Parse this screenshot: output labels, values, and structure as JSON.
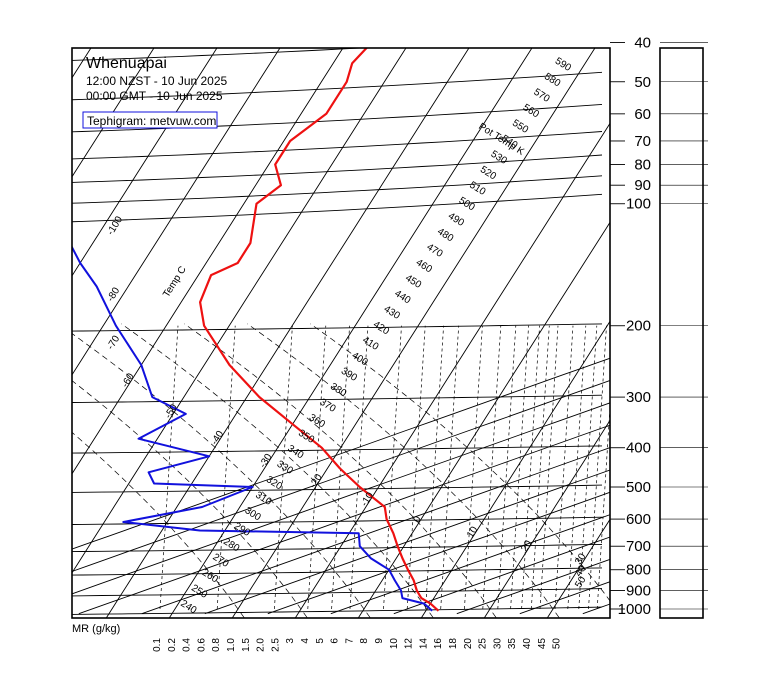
{
  "header": {
    "station": "Whenuapai",
    "local_time": "12:00 NZST - 10 Jun 2025",
    "gmt_time": "00:00 GMT - 10 Jun 2025",
    "source": "Tephigram: metvuw.com"
  },
  "chart_data": {
    "type": "line",
    "title": "Whenuapai",
    "pressure_levels": [
      1000,
      900,
      800,
      700,
      600,
      500,
      400,
      300,
      200,
      100,
      90,
      80,
      70,
      60,
      50,
      40
    ],
    "isotherm_labels": [
      "-100",
      "-80",
      "-70",
      "-60",
      "-50",
      "-40",
      "-30",
      "-20",
      "-10",
      "0",
      "10",
      "20",
      "30",
      "40",
      "50"
    ],
    "theta_labels": [
      "240",
      "250",
      "260",
      "270",
      "280",
      "290",
      "300",
      "310",
      "320",
      "330",
      "340",
      "350",
      "360",
      "370",
      "380",
      "390",
      "400",
      "410",
      "420",
      "430",
      "440",
      "450",
      "460",
      "470",
      "480",
      "490",
      "500",
      "510",
      "520",
      "530",
      "540",
      "550",
      "560",
      "570",
      "580",
      "590"
    ],
    "axis_labels": {
      "temp": "Temp C",
      "theta": "Pot Temp K",
      "mr": "MR (g/kg)"
    },
    "mixing_ratio_labels": [
      "0.1",
      "0.2",
      "0.4",
      "0.6",
      "0.8",
      "1.0",
      "1.5",
      "2.0",
      "2.5",
      "3",
      "4",
      "5",
      "6",
      "7",
      "8",
      "9",
      "10",
      "12",
      "14",
      "16",
      "18",
      "20",
      "25",
      "30",
      "35",
      "40",
      "45",
      "50"
    ],
    "series": [
      {
        "name": "Temperature",
        "color": "#ee1111",
        "points": [
          {
            "p": 1010,
            "t": 12
          },
          {
            "p": 970,
            "t": 10
          },
          {
            "p": 940,
            "t": 8
          },
          {
            "p": 900,
            "t": 6.5
          },
          {
            "p": 850,
            "t": 5
          },
          {
            "p": 800,
            "t": 3
          },
          {
            "p": 750,
            "t": 1
          },
          {
            "p": 700,
            "t": -1
          },
          {
            "p": 650,
            "t": -3
          },
          {
            "p": 600,
            "t": -5.5
          },
          {
            "p": 560,
            "t": -7
          },
          {
            "p": 500,
            "t": -13
          },
          {
            "p": 450,
            "t": -18
          },
          {
            "p": 400,
            "t": -23
          },
          {
            "p": 350,
            "t": -30
          },
          {
            "p": 300,
            "t": -38
          },
          {
            "p": 250,
            "t": -46
          },
          {
            "p": 200,
            "t": -54
          },
          {
            "p": 175,
            "t": -57
          },
          {
            "p": 150,
            "t": -58
          },
          {
            "p": 140,
            "t": -55
          },
          {
            "p": 125,
            "t": -55
          },
          {
            "p": 100,
            "t": -58
          },
          {
            "p": 90,
            "t": -56
          },
          {
            "p": 80,
            "t": -59
          },
          {
            "p": 70,
            "t": -59
          },
          {
            "p": 60,
            "t": -56
          },
          {
            "p": 50,
            "t": -56
          },
          {
            "p": 45,
            "t": -57
          },
          {
            "p": 40,
            "t": -56
          }
        ]
      },
      {
        "name": "Dewpoint",
        "color": "#1111dd",
        "points": [
          {
            "p": 1010,
            "t": 11
          },
          {
            "p": 970,
            "t": 9
          },
          {
            "p": 940,
            "t": 5
          },
          {
            "p": 900,
            "t": 4
          },
          {
            "p": 850,
            "t": 2
          },
          {
            "p": 800,
            "t": 0
          },
          {
            "p": 750,
            "t": -4
          },
          {
            "p": 700,
            "t": -7
          },
          {
            "p": 650,
            "t": -8.5
          },
          {
            "p": 640,
            "t": -34
          },
          {
            "p": 610,
            "t": -47
          },
          {
            "p": 560,
            "t": -36
          },
          {
            "p": 500,
            "t": -30
          },
          {
            "p": 490,
            "t": -46
          },
          {
            "p": 460,
            "t": -48
          },
          {
            "p": 420,
            "t": -40
          },
          {
            "p": 380,
            "t": -53
          },
          {
            "p": 330,
            "t": -48
          },
          {
            "p": 300,
            "t": -55
          },
          {
            "p": 250,
            "t": -60
          },
          {
            "p": 200,
            "t": -68
          },
          {
            "p": 160,
            "t": -75
          },
          {
            "p": 140,
            "t": -80
          },
          {
            "p": 120,
            "t": -85
          },
          {
            "p": 110,
            "t": -86
          }
        ]
      }
    ],
    "grid": true
  }
}
